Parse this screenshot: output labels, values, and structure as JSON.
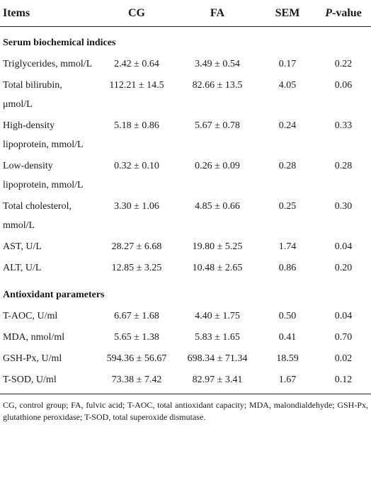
{
  "table": {
    "header": [
      "Items",
      "CG",
      "FA",
      "SEM",
      "P-value"
    ],
    "sections": [
      {
        "title": "Serum biochemical indices",
        "rows": [
          [
            "Triglycerides, mmol/L",
            "2.42 ± 0.64",
            "3.49 ± 0.54",
            "0.17",
            "0.22"
          ],
          [
            "Total bilirubin, μmol/L",
            "112.21 ± 14.5",
            "82.66 ± 13.5",
            "4.05",
            "0.06"
          ],
          [
            "High-density lipoprotein, mmol/L",
            "5.18 ± 0.86",
            "5.67 ± 0.78",
            "0.24",
            "0.33"
          ],
          [
            "Low-density lipoprotein, mmol/L",
            "0.32 ± 0.10",
            "0.26 ± 0.09",
            "0.28",
            "0.28"
          ],
          [
            "Total cholesterol, mmol/L",
            "3.30 ± 1.06",
            "4.85 ± 0.66",
            "0.25",
            "0.30"
          ],
          [
            "AST, U/L",
            "28.27 ± 6.68",
            "19.80 ± 5.25",
            "1.74",
            "0.04"
          ],
          [
            "ALT, U/L",
            "12.85 ± 3.25",
            "10.48 ± 2.65",
            "0.86",
            "0.20"
          ]
        ]
      },
      {
        "title": "Antioxidant parameters",
        "rows": [
          [
            "T-AOC, U/ml",
            "6.67 ± 1.68",
            "4.40 ± 1.75",
            "0.50",
            "0.04"
          ],
          [
            "MDA, nmol/ml",
            "5.65 ± 1.38",
            "5.83 ± 1.65",
            "0.41",
            "0.70"
          ],
          [
            "GSH-Px, U/ml",
            "594.36 ± 56.67",
            "698.34 ± 71.34",
            "18.59",
            "0.02"
          ],
          [
            "T-SOD, U/ml",
            "73.38 ± 7.42",
            "82.97 ± 3.41",
            "1.67",
            "0.12"
          ]
        ]
      }
    ],
    "footnote": "CG, control group; FA, fulvic acid; T-AOC, total antioxidant capacity; MDA, malondialdehyde; GSH-Px, glutathione peroxidase; T-SOD, total superoxide dismutase."
  }
}
